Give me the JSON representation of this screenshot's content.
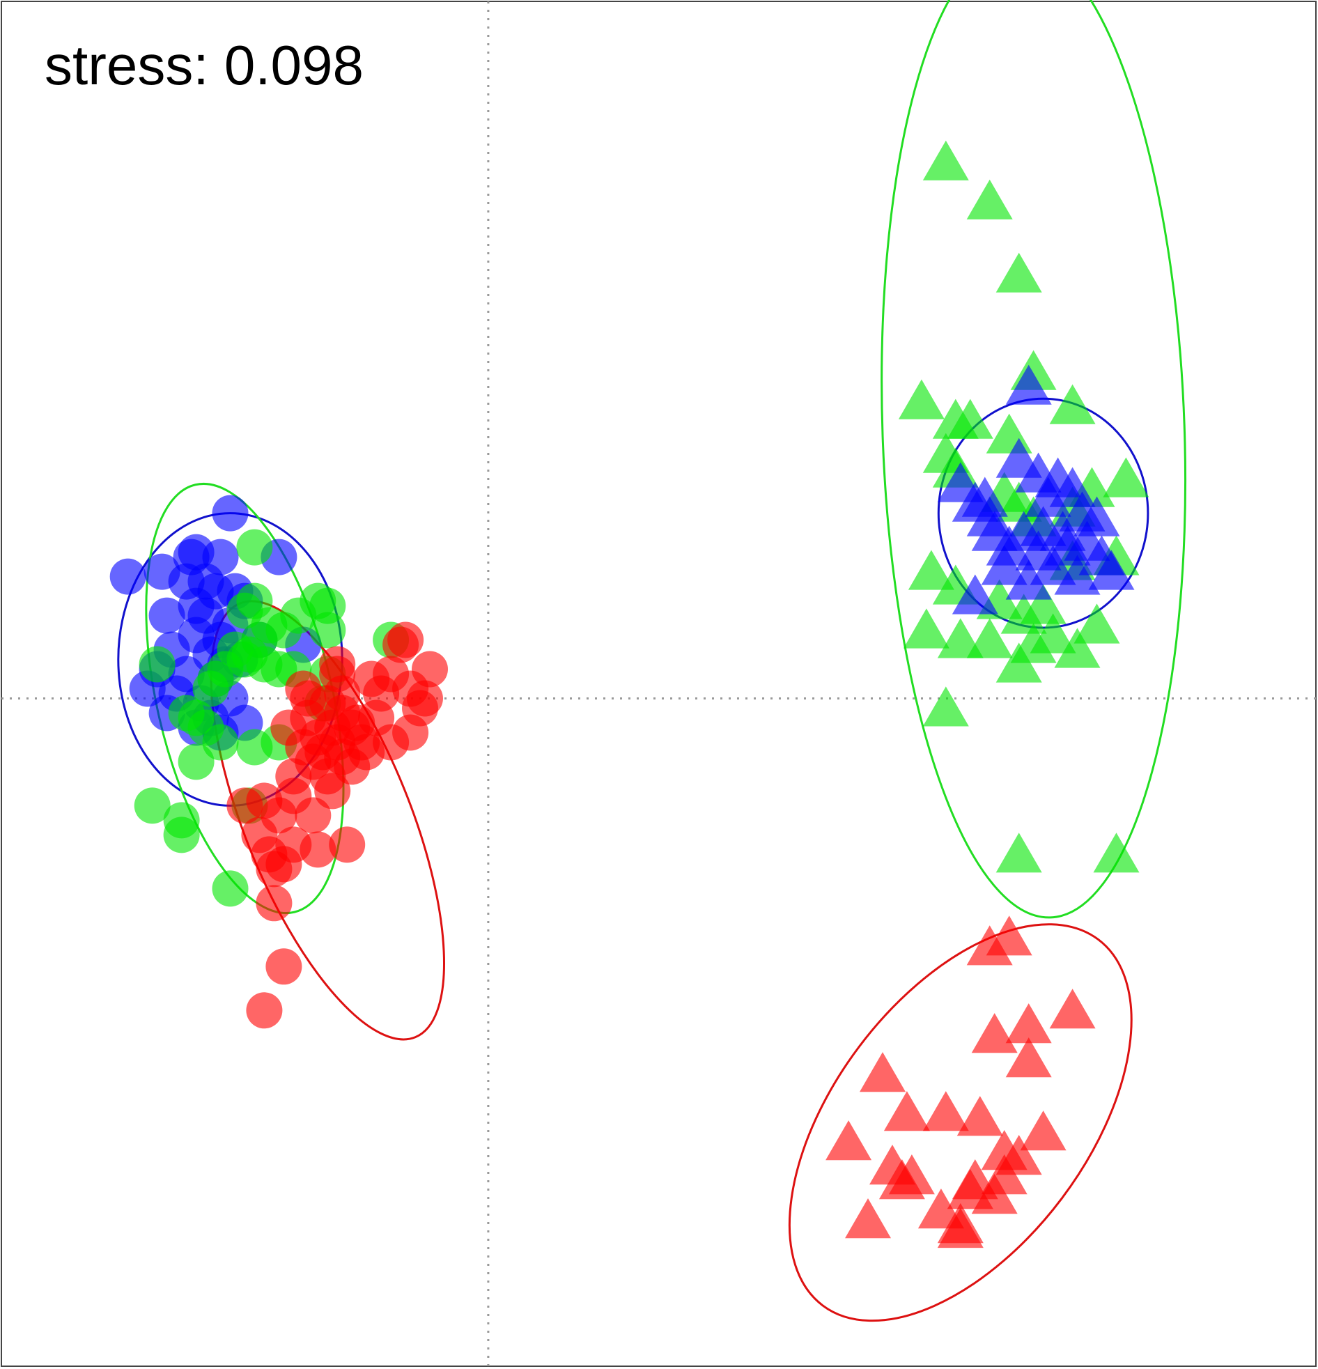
{
  "annotation": {
    "stress_label": "stress: 0.098"
  },
  "colors": {
    "red": "#ff0000",
    "green": "#00e600",
    "blue": "#0000ff",
    "ellipse_green": "#22dd22",
    "ellipse_red": "#dd1111",
    "ellipse_blue": "#1111cc",
    "reference_line": "#999999"
  },
  "chart_data": {
    "type": "scatter",
    "title": "",
    "xlabel": "",
    "ylabel": "",
    "xlim": [
      -1.0,
      1.7
    ],
    "ylim": [
      -1.37,
      1.43
    ],
    "grid": false,
    "axes_ticks": false,
    "reference_lines": {
      "x": 0,
      "y": 0
    },
    "legend": "none",
    "point_opacity": 0.6,
    "groups": [
      {
        "color": "blue",
        "marker": "circle",
        "points": [
          [
            -0.53,
            0.38
          ],
          [
            -0.74,
            0.25
          ],
          [
            -0.67,
            0.26
          ],
          [
            -0.6,
            0.3
          ],
          [
            -0.55,
            0.29
          ],
          [
            -0.43,
            0.29
          ],
          [
            -0.56,
            0.22
          ],
          [
            -0.62,
            0.24
          ],
          [
            -0.58,
            0.24
          ],
          [
            -0.52,
            0.22
          ],
          [
            -0.5,
            0.2
          ],
          [
            -0.66,
            0.17
          ],
          [
            -0.58,
            0.17
          ],
          [
            -0.53,
            0.15
          ],
          [
            -0.6,
            0.13
          ],
          [
            -0.55,
            0.12
          ],
          [
            -0.47,
            0.12
          ],
          [
            -0.65,
            0.1
          ],
          [
            -0.57,
            0.09
          ],
          [
            -0.51,
            0.08
          ],
          [
            -0.68,
            0.06
          ],
          [
            -0.62,
            0.05
          ],
          [
            -0.56,
            0.04
          ],
          [
            -0.7,
            0.02
          ],
          [
            -0.64,
            0.01
          ],
          [
            -0.59,
            -0.01
          ],
          [
            -0.53,
            0.0
          ],
          [
            -0.66,
            -0.03
          ],
          [
            -0.57,
            -0.04
          ],
          [
            -0.6,
            -0.06
          ],
          [
            -0.55,
            -0.07
          ],
          [
            -0.5,
            -0.05
          ],
          [
            -0.54,
            0.07
          ],
          [
            -0.6,
            0.19
          ],
          [
            -0.61,
            0.29
          ],
          [
            -0.38,
            0.11
          ]
        ]
      },
      {
        "color": "green",
        "marker": "circle",
        "points": [
          [
            -0.48,
            0.31
          ],
          [
            -0.48,
            0.2
          ],
          [
            -0.39,
            0.17
          ],
          [
            -0.35,
            0.2
          ],
          [
            -0.33,
            0.19
          ],
          [
            -0.5,
            0.18
          ],
          [
            -0.45,
            0.15
          ],
          [
            -0.42,
            0.14
          ],
          [
            -0.47,
            0.12
          ],
          [
            -0.52,
            0.1
          ],
          [
            -0.5,
            0.08
          ],
          [
            -0.46,
            0.07
          ],
          [
            -0.43,
            0.06
          ],
          [
            -0.54,
            0.06
          ],
          [
            -0.56,
            0.04
          ],
          [
            -0.49,
            0.09
          ],
          [
            -0.4,
            0.06
          ],
          [
            -0.2,
            0.12
          ],
          [
            -0.68,
            0.07
          ],
          [
            -0.57,
            0.02
          ],
          [
            -0.6,
            -0.04
          ],
          [
            -0.62,
            -0.03
          ],
          [
            -0.58,
            -0.06
          ],
          [
            -0.55,
            -0.09
          ],
          [
            -0.48,
            -0.1
          ],
          [
            -0.6,
            -0.13
          ],
          [
            -0.43,
            -0.09
          ],
          [
            -0.34,
            -0.01
          ],
          [
            -0.69,
            -0.22
          ],
          [
            -0.63,
            -0.28
          ],
          [
            -0.53,
            -0.39
          ],
          [
            -0.49,
            -0.22
          ],
          [
            -0.63,
            -0.25
          ],
          [
            -0.33,
            0.14
          ],
          [
            -0.33,
            0.05
          ]
        ]
      },
      {
        "color": "red",
        "marker": "circle",
        "points": [
          [
            -0.38,
            0.02
          ],
          [
            -0.31,
            0.05
          ],
          [
            -0.37,
            0.0
          ],
          [
            -0.33,
            -0.01
          ],
          [
            -0.3,
            -0.03
          ],
          [
            -0.37,
            -0.04
          ],
          [
            -0.32,
            -0.06
          ],
          [
            -0.28,
            -0.06
          ],
          [
            -0.35,
            -0.08
          ],
          [
            -0.31,
            -0.09
          ],
          [
            -0.26,
            -0.09
          ],
          [
            -0.38,
            -0.1
          ],
          [
            -0.34,
            -0.11
          ],
          [
            -0.3,
            -0.12
          ],
          [
            -0.41,
            -0.06
          ],
          [
            -0.36,
            -0.13
          ],
          [
            -0.28,
            -0.14
          ],
          [
            -0.4,
            -0.16
          ],
          [
            -0.33,
            -0.16
          ],
          [
            -0.4,
            -0.2
          ],
          [
            -0.32,
            -0.19
          ],
          [
            -0.46,
            -0.21
          ],
          [
            -0.5,
            -0.22
          ],
          [
            -0.43,
            -0.24
          ],
          [
            -0.36,
            -0.24
          ],
          [
            -0.47,
            -0.28
          ],
          [
            -0.4,
            -0.3
          ],
          [
            -0.35,
            -0.31
          ],
          [
            -0.29,
            -0.3
          ],
          [
            -0.45,
            -0.32
          ],
          [
            -0.42,
            -0.34
          ],
          [
            -0.44,
            -0.35
          ],
          [
            -0.44,
            -0.42
          ],
          [
            -0.42,
            -0.55
          ],
          [
            -0.46,
            -0.64
          ],
          [
            -0.2,
            -0.09
          ],
          [
            -0.25,
            -0.11
          ],
          [
            -0.27,
            -0.05
          ],
          [
            -0.23,
            -0.04
          ],
          [
            -0.22,
            0.01
          ],
          [
            -0.3,
            0.01
          ],
          [
            -0.2,
            0.05
          ],
          [
            -0.16,
            0.02
          ],
          [
            -0.13,
            0.0
          ],
          [
            -0.14,
            -0.02
          ],
          [
            -0.16,
            -0.07
          ],
          [
            -0.17,
            0.12
          ],
          [
            -0.12,
            0.06
          ],
          [
            -0.18,
            0.11
          ],
          [
            -0.24,
            0.04
          ],
          [
            -0.31,
            0.07
          ]
        ]
      },
      {
        "color": "green",
        "marker": "triangle",
        "points": [
          [
            0.94,
            1.09
          ],
          [
            1.03,
            1.01
          ],
          [
            1.09,
            0.86
          ],
          [
            0.89,
            0.6
          ],
          [
            0.96,
            0.56
          ],
          [
            0.99,
            0.56
          ],
          [
            1.07,
            0.53
          ],
          [
            1.12,
            0.66
          ],
          [
            1.2,
            0.59
          ],
          [
            0.94,
            0.49
          ],
          [
            0.96,
            0.46
          ],
          [
            1.06,
            0.41
          ],
          [
            1.12,
            0.36
          ],
          [
            1.2,
            0.38
          ],
          [
            1.09,
            0.39
          ],
          [
            0.91,
            0.25
          ],
          [
            0.96,
            0.22
          ],
          [
            1.05,
            0.19
          ],
          [
            1.1,
            0.16
          ],
          [
            1.14,
            0.18
          ],
          [
            0.9,
            0.13
          ],
          [
            0.97,
            0.11
          ],
          [
            1.03,
            0.11
          ],
          [
            1.12,
            0.1
          ],
          [
            1.16,
            0.12
          ],
          [
            1.09,
            0.06
          ],
          [
            1.21,
            0.09
          ],
          [
            1.25,
            0.14
          ],
          [
            1.2,
            0.27
          ],
          [
            1.29,
            0.28
          ],
          [
            1.31,
            0.44
          ],
          [
            1.24,
            0.42
          ],
          [
            0.94,
            -0.03
          ],
          [
            1.09,
            -0.33
          ],
          [
            1.29,
            -0.33
          ]
        ]
      },
      {
        "color": "blue",
        "marker": "triangle",
        "points": [
          [
            1.11,
            0.63
          ],
          [
            0.97,
            0.43
          ],
          [
            1.0,
            0.39
          ],
          [
            1.03,
            0.36
          ],
          [
            1.09,
            0.48
          ],
          [
            1.13,
            0.45
          ],
          [
            1.17,
            0.44
          ],
          [
            1.15,
            0.4
          ],
          [
            1.2,
            0.42
          ],
          [
            1.22,
            0.37
          ],
          [
            1.18,
            0.33
          ],
          [
            1.25,
            0.36
          ],
          [
            1.23,
            0.31
          ],
          [
            1.14,
            0.34
          ],
          [
            1.1,
            0.33
          ],
          [
            1.07,
            0.3
          ],
          [
            1.04,
            0.33
          ],
          [
            1.06,
            0.26
          ],
          [
            1.11,
            0.23
          ],
          [
            1.16,
            0.26
          ],
          [
            1.21,
            0.24
          ],
          [
            1.26,
            0.28
          ],
          [
            1.13,
            0.29
          ],
          [
            1.19,
            0.3
          ],
          [
            1.02,
            0.4
          ],
          [
            1.28,
            0.25
          ],
          [
            1.0,
            0.2
          ]
        ]
      },
      {
        "color": "red",
        "marker": "triangle",
        "points": [
          [
            1.07,
            -0.5
          ],
          [
            1.03,
            -0.52
          ],
          [
            1.04,
            -0.7
          ],
          [
            1.11,
            -0.68
          ],
          [
            1.2,
            -0.65
          ],
          [
            1.11,
            -0.75
          ],
          [
            0.81,
            -0.78
          ],
          [
            0.74,
            -0.92
          ],
          [
            0.86,
            -0.86
          ],
          [
            0.94,
            -0.86
          ],
          [
            1.01,
            -0.87
          ],
          [
            0.83,
            -0.97
          ],
          [
            0.85,
            -1.0
          ],
          [
            0.87,
            -0.99
          ],
          [
            1.06,
            -0.94
          ],
          [
            1.14,
            -0.9
          ],
          [
            1.09,
            -0.95
          ],
          [
            1.06,
            -0.99
          ],
          [
            1.04,
            -1.03
          ],
          [
            0.99,
            -1.02
          ],
          [
            0.93,
            -1.06
          ],
          [
            0.97,
            -1.09
          ],
          [
            0.78,
            -1.08
          ],
          [
            0.97,
            -1.1
          ],
          [
            1.0,
            -1.0
          ]
        ]
      }
    ],
    "ellipses": [
      {
        "color": "blue",
        "center": [
          -0.53,
          0.08
        ],
        "radii": [
          0.23,
          0.3
        ],
        "angle": 0
      },
      {
        "color": "green",
        "center": [
          -0.5,
          0.0
        ],
        "radii": [
          0.18,
          0.45
        ],
        "angle": -13
      },
      {
        "color": "red",
        "center": [
          -0.33,
          -0.25
        ],
        "radii": [
          0.17,
          0.48
        ],
        "angle": -22
      },
      {
        "color": "blue",
        "center": [
          1.14,
          0.38
        ],
        "radii": [
          0.215,
          0.235
        ],
        "angle": 0
      },
      {
        "color": "green",
        "center": [
          1.12,
          0.55
        ],
        "radii": [
          0.31,
          1.0
        ],
        "angle": -2
      },
      {
        "color": "red",
        "center": [
          0.97,
          -0.87
        ],
        "radii": [
          0.26,
          0.47
        ],
        "angle": 37
      }
    ]
  }
}
